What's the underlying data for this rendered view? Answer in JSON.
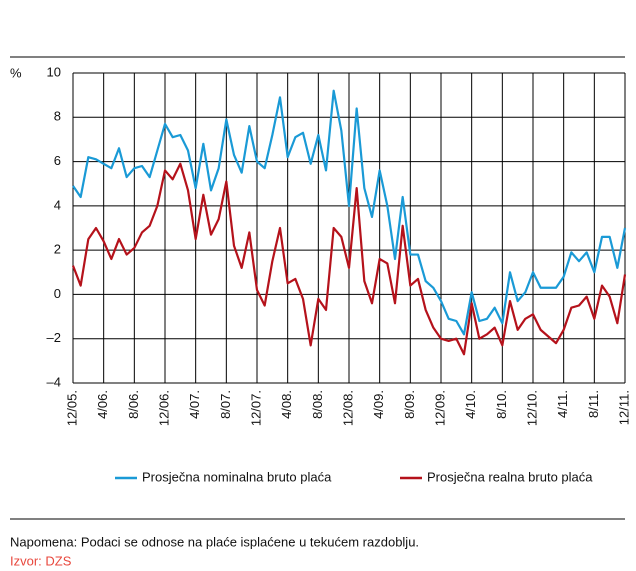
{
  "chart_data": {
    "type": "line",
    "y_label": "%",
    "categories": [
      "12/05.",
      null,
      null,
      null,
      "4/06.",
      null,
      null,
      null,
      "8/06.",
      null,
      null,
      null,
      "12/06.",
      null,
      null,
      null,
      "4/07.",
      null,
      null,
      null,
      "8/07.",
      null,
      null,
      null,
      "12/07.",
      null,
      null,
      null,
      "4/08.",
      null,
      null,
      null,
      "8/08.",
      null,
      null,
      null,
      "12/08.",
      null,
      null,
      null,
      "4/09.",
      null,
      null,
      null,
      "8/09.",
      null,
      null,
      null,
      "12/09.",
      null,
      null,
      null,
      "4/10.",
      null,
      null,
      null,
      "8/10.",
      null,
      null,
      null,
      "12/10.",
      null,
      null,
      null,
      "4/11.",
      null,
      null,
      null,
      "8/11.",
      null,
      null,
      null,
      "12/11."
    ],
    "series": [
      {
        "name": "Prosječna nominalna bruto plaća",
        "color": "#1a9ad6",
        "values": [
          4.9,
          4.4,
          6.2,
          6.1,
          5.9,
          5.7,
          6.6,
          5.3,
          5.7,
          5.8,
          5.3,
          6.5,
          7.7,
          7.1,
          7.2,
          6.5,
          4.8,
          6.8,
          4.7,
          5.7,
          7.9,
          6.3,
          5.5,
          7.6,
          6.0,
          5.7,
          7.2,
          8.9,
          6.2,
          7.1,
          7.3,
          5.9,
          7.2,
          5.6,
          9.2,
          7.4,
          4.0,
          8.4,
          4.8,
          3.5,
          5.6,
          4.0,
          1.6,
          4.4,
          1.8,
          1.8,
          0.6,
          0.3,
          -0.3,
          -1.1,
          -1.2,
          -1.8,
          0.1,
          -1.2,
          -1.1,
          -0.6,
          -1.3,
          1.0,
          -0.3,
          0.1,
          1.0,
          0.3,
          0.3,
          0.3,
          0.8,
          1.9,
          1.5,
          1.9,
          1.0,
          2.6,
          2.6,
          1.2,
          3.0
        ]
      },
      {
        "name": "Prosječna realna bruto plaća",
        "color": "#b5121b",
        "values": [
          1.3,
          0.4,
          2.5,
          3.0,
          2.4,
          1.6,
          2.5,
          1.8,
          2.1,
          2.8,
          3.1,
          4.0,
          5.6,
          5.2,
          5.9,
          4.7,
          2.5,
          4.5,
          2.7,
          3.4,
          5.1,
          2.2,
          1.2,
          2.8,
          0.2,
          -0.5,
          1.5,
          3.0,
          0.5,
          0.7,
          -0.2,
          -2.3,
          -0.2,
          -0.7,
          3.0,
          2.6,
          1.2,
          4.8,
          0.6,
          -0.4,
          1.6,
          1.4,
          -0.4,
          3.1,
          0.4,
          0.7,
          -0.7,
          -1.5,
          -2.0,
          -2.1,
          -2.0,
          -2.7,
          -0.4,
          -2.0,
          -1.8,
          -1.5,
          -2.3,
          -0.3,
          -1.6,
          -1.1,
          -0.9,
          -1.6,
          -1.9,
          -2.2,
          -1.6,
          -0.6,
          -0.5,
          -0.1,
          -1.1,
          0.4,
          -0.1,
          -1.3,
          0.9
        ]
      }
    ],
    "ylim": [
      -4,
      10
    ],
    "yticks": [
      {
        "value": -4,
        "label": "–4"
      },
      {
        "value": -2,
        "label": "–2"
      },
      0,
      2,
      4,
      6,
      8,
      10
    ],
    "grid": true,
    "note": "Napomena: Podaci se odnose na plaće isplaćene u tekućem razdoblju.",
    "source": "Izvor: DZS"
  }
}
